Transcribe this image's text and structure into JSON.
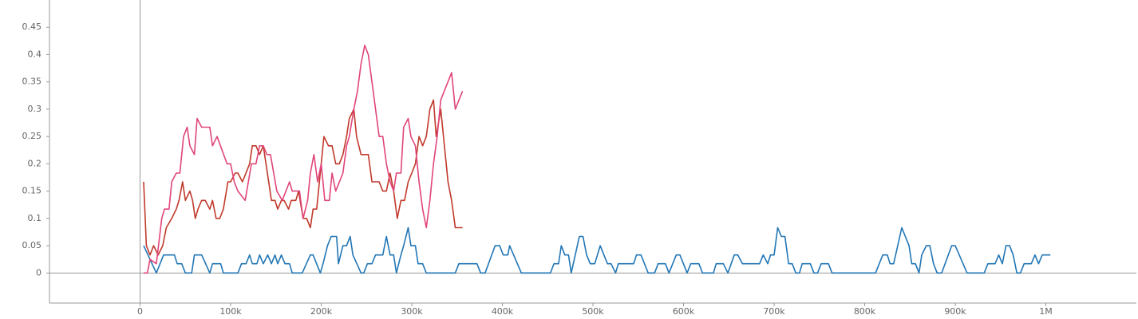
{
  "chart_data": {
    "type": "line",
    "xlim": [
      -100000,
      1100000
    ],
    "ylim": [
      -0.055,
      0.5
    ],
    "xticks": [
      {
        "value": 0,
        "label": "0"
      },
      {
        "value": 100000,
        "label": "100k"
      },
      {
        "value": 200000,
        "label": "200k"
      },
      {
        "value": 300000,
        "label": "300k"
      },
      {
        "value": 400000,
        "label": "400k"
      },
      {
        "value": 500000,
        "label": "500k"
      },
      {
        "value": 600000,
        "label": "600k"
      },
      {
        "value": 700000,
        "label": "700k"
      },
      {
        "value": 800000,
        "label": "800k"
      },
      {
        "value": 900000,
        "label": "900k"
      },
      {
        "value": 1000000,
        "label": "1M"
      }
    ],
    "yticks": [
      0,
      0.05,
      0.1,
      0.15,
      0.2,
      0.25,
      0.3,
      0.35,
      0.4,
      0.45
    ],
    "grid": false,
    "series": [
      {
        "color": "#2176b5",
        "x": [
          4000,
          18000,
          26000,
          38000,
          41000,
          46000,
          50000,
          57000,
          60000,
          68000,
          77000,
          80000,
          89000,
          92000,
          108000,
          112000,
          117000,
          121000,
          124000,
          129000,
          132000,
          136000,
          141000,
          145000,
          149000,
          152000,
          156000,
          160000,
          165000,
          168000,
          179000,
          188000,
          191000,
          199000,
          202000,
          207000,
          211000,
          217000,
          219000,
          224000,
          228000,
          232000,
          235000,
          244000,
          247000,
          251000,
          256000,
          260000,
          268000,
          272000,
          276000,
          280000,
          283000,
          288000,
          291000,
          296000,
          299000,
          304000,
          307000,
          312000,
          316000,
          348000,
          352000,
          372000,
          376000,
          381000,
          392000,
          397000,
          401000,
          406000,
          408000,
          421000,
          453000,
          457000,
          462000,
          465000,
          469000,
          473000,
          476000,
          485000,
          489000,
          493000,
          497000,
          502000,
          508000,
          516000,
          520000,
          525000,
          528000,
          545000,
          548000,
          553000,
          561000,
          568000,
          572000,
          580000,
          584000,
          592000,
          596000,
          604000,
          608000,
          617000,
          621000,
          633000,
          636000,
          644000,
          649000,
          656000,
          660000,
          665000,
          684000,
          688000,
          693000,
          696000,
          700000,
          704000,
          708000,
          712000,
          716000,
          720000,
          724000,
          728000,
          731000,
          740000,
          744000,
          748000,
          752000,
          760000,
          764000,
          812000,
          820000,
          825000,
          828000,
          832000,
          841000,
          849000,
          852000,
          856000,
          860000,
          863000,
          868000,
          872000,
          876000,
          880000,
          885000,
          896000,
          900000,
          913000,
          932000,
          936000,
          944000,
          948000,
          952000,
          956000,
          960000,
          964000,
          968000,
          972000,
          976000,
          984000,
          988000,
          992000,
          996000,
          1005000
        ],
        "values": [
          0.05,
          0,
          0.033,
          0.033,
          0.017,
          0.017,
          0,
          0,
          0.033,
          0.033,
          0,
          0.017,
          0.017,
          0,
          0,
          0.017,
          0.017,
          0.033,
          0.017,
          0.017,
          0.033,
          0.017,
          0.033,
          0.017,
          0.033,
          0.017,
          0.033,
          0.017,
          0.017,
          0,
          0,
          0.033,
          0.033,
          0,
          0.017,
          0.05,
          0.067,
          0.067,
          0.017,
          0.05,
          0.05,
          0.067,
          0.033,
          0,
          0,
          0.017,
          0.017,
          0.033,
          0.033,
          0.067,
          0.033,
          0.033,
          0,
          0.033,
          0.05,
          0.083,
          0.05,
          0.05,
          0.017,
          0.017,
          0,
          0,
          0.017,
          0.017,
          0,
          0,
          0.05,
          0.05,
          0.033,
          0.033,
          0.05,
          0,
          0,
          0.017,
          0.017,
          0.05,
          0.033,
          0.033,
          0,
          0.067,
          0.067,
          0.033,
          0.017,
          0.017,
          0.05,
          0.017,
          0.017,
          0,
          0.017,
          0.017,
          0.033,
          0.033,
          0,
          0,
          0.017,
          0.017,
          0,
          0.033,
          0.033,
          0,
          0.017,
          0.017,
          0,
          0,
          0.017,
          0.017,
          0,
          0.033,
          0.033,
          0.017,
          0.017,
          0.033,
          0.017,
          0.033,
          0.033,
          0.083,
          0.067,
          0.067,
          0.017,
          0.017,
          0,
          0,
          0.017,
          0.017,
          0,
          0,
          0.017,
          0.017,
          0,
          0,
          0.033,
          0.033,
          0.017,
          0.017,
          0.083,
          0.05,
          0.017,
          0.017,
          0,
          0.033,
          0.05,
          0.05,
          0.017,
          0,
          0,
          0.05,
          0.05,
          0,
          0,
          0.017,
          0.017,
          0.033,
          0.017,
          0.05,
          0.05,
          0.033,
          0,
          0,
          0.017,
          0.017,
          0.033,
          0.017,
          0.033,
          0.033
        ]
      },
      {
        "color": "#c0392b",
        "x": [
          4000,
          7000,
          11000,
          15000,
          20000,
          25000,
          29000,
          35000,
          40000,
          43000,
          47000,
          50000,
          55000,
          58000,
          61000,
          64000,
          68000,
          72000,
          77000,
          80000,
          84000,
          88000,
          92000,
          97000,
          100000,
          105000,
          108000,
          113000,
          121000,
          124000,
          128000,
          132000,
          136000,
          139000,
          142000,
          145000,
          149000,
          152000,
          156000,
          159000,
          164000,
          167000,
          172000,
          175000,
          180000,
          184000,
          188000,
          191000,
          195000,
          200000,
          203000,
          208000,
          212000,
          216000,
          220000,
          224000,
          228000,
          231000,
          236000,
          239000,
          244000,
          252000,
          256000,
          264000,
          268000,
          272000,
          276000,
          280000,
          284000,
          288000,
          292000,
          296000,
          300000,
          304000,
          308000,
          312000,
          316000,
          320000,
          324000,
          327000,
          332000,
          335000,
          340000,
          344000,
          348000,
          356000
        ],
        "values": [
          0.167,
          0.05,
          0.033,
          0.05,
          0.033,
          0.05,
          0.083,
          0.1,
          0.117,
          0.133,
          0.167,
          0.133,
          0.15,
          0.133,
          0.1,
          0.117,
          0.133,
          0.133,
          0.117,
          0.133,
          0.1,
          0.1,
          0.117,
          0.167,
          0.167,
          0.183,
          0.183,
          0.167,
          0.2,
          0.233,
          0.233,
          0.217,
          0.233,
          0.2,
          0.167,
          0.133,
          0.133,
          0.117,
          0.133,
          0.133,
          0.117,
          0.133,
          0.133,
          0.15,
          0.1,
          0.1,
          0.083,
          0.117,
          0.117,
          0.2,
          0.25,
          0.233,
          0.233,
          0.2,
          0.2,
          0.217,
          0.25,
          0.283,
          0.3,
          0.25,
          0.217,
          0.217,
          0.167,
          0.167,
          0.15,
          0.15,
          0.183,
          0.15,
          0.1,
          0.133,
          0.133,
          0.167,
          0.183,
          0.2,
          0.25,
          0.233,
          0.25,
          0.3,
          0.317,
          0.25,
          0.3,
          0.25,
          0.167,
          0.133,
          0.083,
          0.083
        ]
      },
      {
        "color": "#e0457b",
        "x": [
          4000,
          8000,
          11000,
          18000,
          24000,
          27000,
          32000,
          35000,
          40000,
          44000,
          48000,
          52000,
          55000,
          60000,
          63000,
          68000,
          77000,
          80000,
          85000,
          96000,
          100000,
          104000,
          108000,
          116000,
          123000,
          128000,
          132000,
          136000,
          140000,
          144000,
          151000,
          157000,
          165000,
          168000,
          176000,
          180000,
          185000,
          188000,
          192000,
          196000,
          200000,
          204000,
          209000,
          212000,
          216000,
          224000,
          228000,
          231000,
          236000,
          240000,
          244000,
          248000,
          252000,
          256000,
          264000,
          268000,
          272000,
          276000,
          280000,
          283000,
          288000,
          291000,
          296000,
          299000,
          304000,
          308000,
          312000,
          316000,
          320000,
          324000,
          328000,
          332000,
          344000,
          348000,
          356000
        ],
        "values": [
          0,
          0,
          0.025,
          0.017,
          0.1,
          0.117,
          0.117,
          0.167,
          0.183,
          0.183,
          0.25,
          0.267,
          0.233,
          0.217,
          0.283,
          0.267,
          0.267,
          0.233,
          0.25,
          0.2,
          0.2,
          0.167,
          0.15,
          0.133,
          0.2,
          0.2,
          0.233,
          0.233,
          0.217,
          0.217,
          0.15,
          0.133,
          0.167,
          0.15,
          0.15,
          0.1,
          0.133,
          0.183,
          0.217,
          0.167,
          0.2,
          0.133,
          0.133,
          0.183,
          0.15,
          0.183,
          0.233,
          0.25,
          0.3,
          0.333,
          0.383,
          0.417,
          0.4,
          0.35,
          0.25,
          0.25,
          0.2,
          0.167,
          0.15,
          0.183,
          0.183,
          0.267,
          0.283,
          0.25,
          0.233,
          0.167,
          0.117,
          0.083,
          0.133,
          0.2,
          0.25,
          0.317,
          0.367,
          0.3,
          0.333
        ]
      }
    ]
  }
}
